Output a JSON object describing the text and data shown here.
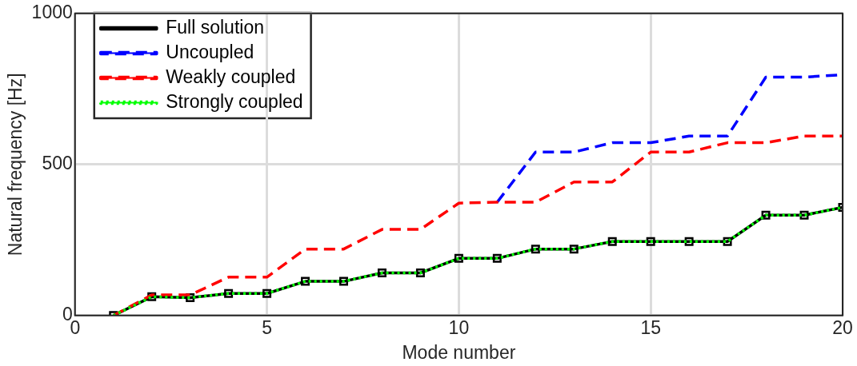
{
  "chart_data": {
    "type": "line",
    "xlabel": "Mode number",
    "ylabel": "Natural frequency [Hz]",
    "x": [
      1,
      2,
      3,
      4,
      5,
      6,
      7,
      8,
      9,
      10,
      11,
      12,
      13,
      14,
      15,
      16,
      17,
      18,
      19,
      20
    ],
    "series": [
      {
        "name": "Full solution",
        "color": "#000000",
        "marker": "square",
        "line_style": "solid",
        "values": [
          0,
          62,
          59,
          73,
          73,
          113,
          113,
          141,
          141,
          189,
          189,
          220,
          220,
          245,
          245,
          245,
          245,
          332,
          332,
          358
        ]
      },
      {
        "name": "Uncoupled",
        "color": "#0000ff",
        "marker": "none",
        "line_style": "dashed",
        "values": [
          null,
          null,
          null,
          null,
          null,
          null,
          null,
          null,
          null,
          null,
          375,
          541,
          541,
          572,
          572,
          594,
          594,
          789,
          789,
          797
        ]
      },
      {
        "name": "Weakly coupled",
        "color": "#ff0000",
        "marker": "none",
        "line_style": "dashed",
        "values": [
          0,
          68,
          68,
          127,
          127,
          220,
          220,
          285,
          285,
          372,
          375,
          375,
          442,
          442,
          541,
          541,
          572,
          572,
          594,
          594
        ]
      },
      {
        "name": "Strongly coupled",
        "color": "#00ff00",
        "marker": "none",
        "line_style": "dotted",
        "values": [
          0,
          62,
          59,
          73,
          73,
          113,
          113,
          141,
          141,
          189,
          189,
          220,
          220,
          245,
          245,
          245,
          245,
          332,
          332,
          358
        ]
      }
    ],
    "xlim": [
      0,
      20
    ],
    "xticks": [
      0,
      5,
      10,
      15,
      20
    ],
    "ylim": [
      0,
      1000
    ],
    "yticks": [
      0,
      500,
      {
        "value": 1000,
        "label": "1000"
      }
    ],
    "grid": true,
    "legend": "top left"
  }
}
